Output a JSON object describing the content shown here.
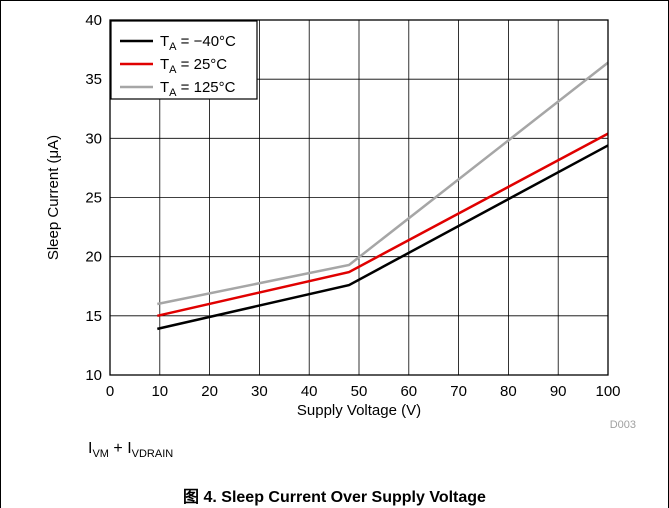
{
  "chart_data": {
    "type": "line",
    "xlabel": "Supply Voltage (V)",
    "ylabel": "Sleep Current (μA)",
    "xlim": [
      0,
      100
    ],
    "ylim": [
      10,
      40
    ],
    "x_ticks": [
      0,
      10,
      20,
      30,
      40,
      50,
      60,
      70,
      80,
      90,
      100
    ],
    "y_ticks": [
      10,
      15,
      20,
      25,
      30,
      35,
      40
    ],
    "grid": true,
    "legend_position": "top-left",
    "series": [
      {
        "name": "T_A = −40°C",
        "name_base": "T",
        "name_sub": "A",
        "name_rest": " = −40°C",
        "color": "#000000",
        "points": [
          [
            9.5,
            13.9
          ],
          [
            48,
            17.6
          ],
          [
            100,
            29.4
          ]
        ]
      },
      {
        "name": "T_A = 25°C",
        "name_base": "T",
        "name_sub": "A",
        "name_rest": " = 25°C",
        "color": "#e00000",
        "points": [
          [
            9.5,
            15.0
          ],
          [
            48,
            18.7
          ],
          [
            100,
            30.4
          ]
        ]
      },
      {
        "name": "T_A = 125°C",
        "name_base": "T",
        "name_sub": "A",
        "name_rest": " = 125°C",
        "color": "#a6a6a6",
        "points": [
          [
            9.5,
            16.0
          ],
          [
            48,
            19.3
          ],
          [
            100,
            36.4
          ]
        ]
      }
    ],
    "figure_id": "D003"
  },
  "note": {
    "i1_base": "I",
    "i1_sub": "VM",
    "plus": " + ",
    "i2_base": "I",
    "i2_sub": "VDRAIN"
  },
  "caption": "图 4. Sleep Current Over Supply Voltage"
}
